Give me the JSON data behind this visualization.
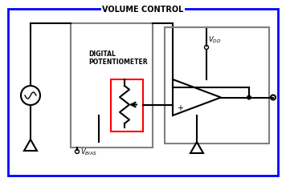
{
  "bg_color": "#ffffff",
  "blue_box_color": "#0000ff",
  "gray_color": "#808080",
  "black_color": "#000000",
  "red_color": "#ff0000",
  "title": "VOLUME CONTROL",
  "label_dig": "DIGITAL",
  "label_pot": "POTENTIOMETER",
  "label_vbias": "V",
  "label_vbias_sub": "BIAS",
  "label_vdd": "V",
  "label_vdd_sub": "DD",
  "fig_width": 3.56,
  "fig_height": 2.28
}
